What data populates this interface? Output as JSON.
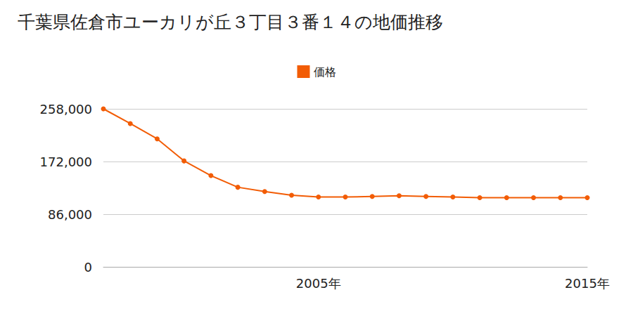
{
  "chart_data": {
    "type": "line",
    "title": "千葉県佐倉市ユーカリが丘３丁目３番１４の地価推移",
    "categories": [
      null,
      null,
      null,
      null,
      null,
      null,
      null,
      null,
      "2005年",
      null,
      null,
      null,
      null,
      null,
      null,
      null,
      null,
      null,
      "2015年"
    ],
    "series": [
      {
        "name": "価格",
        "color": "#f25c05",
        "marker": "circle",
        "line_style": "solid",
        "values": [
          258000,
          234000,
          209000,
          173000,
          149000,
          130000,
          123000,
          117000,
          114000,
          114000,
          115000,
          116000,
          115000,
          114000,
          113000,
          113000,
          113000,
          113000,
          113000
        ]
      }
    ],
    "ylim": [
      0,
      258000
    ],
    "yticks": [
      0,
      {
        "value": 86000,
        "label": "86,000"
      },
      {
        "value": 172000,
        "label": "172,000"
      },
      {
        "value": 258000,
        "label": "258,000"
      }
    ],
    "grid": true,
    "legend": "top"
  }
}
